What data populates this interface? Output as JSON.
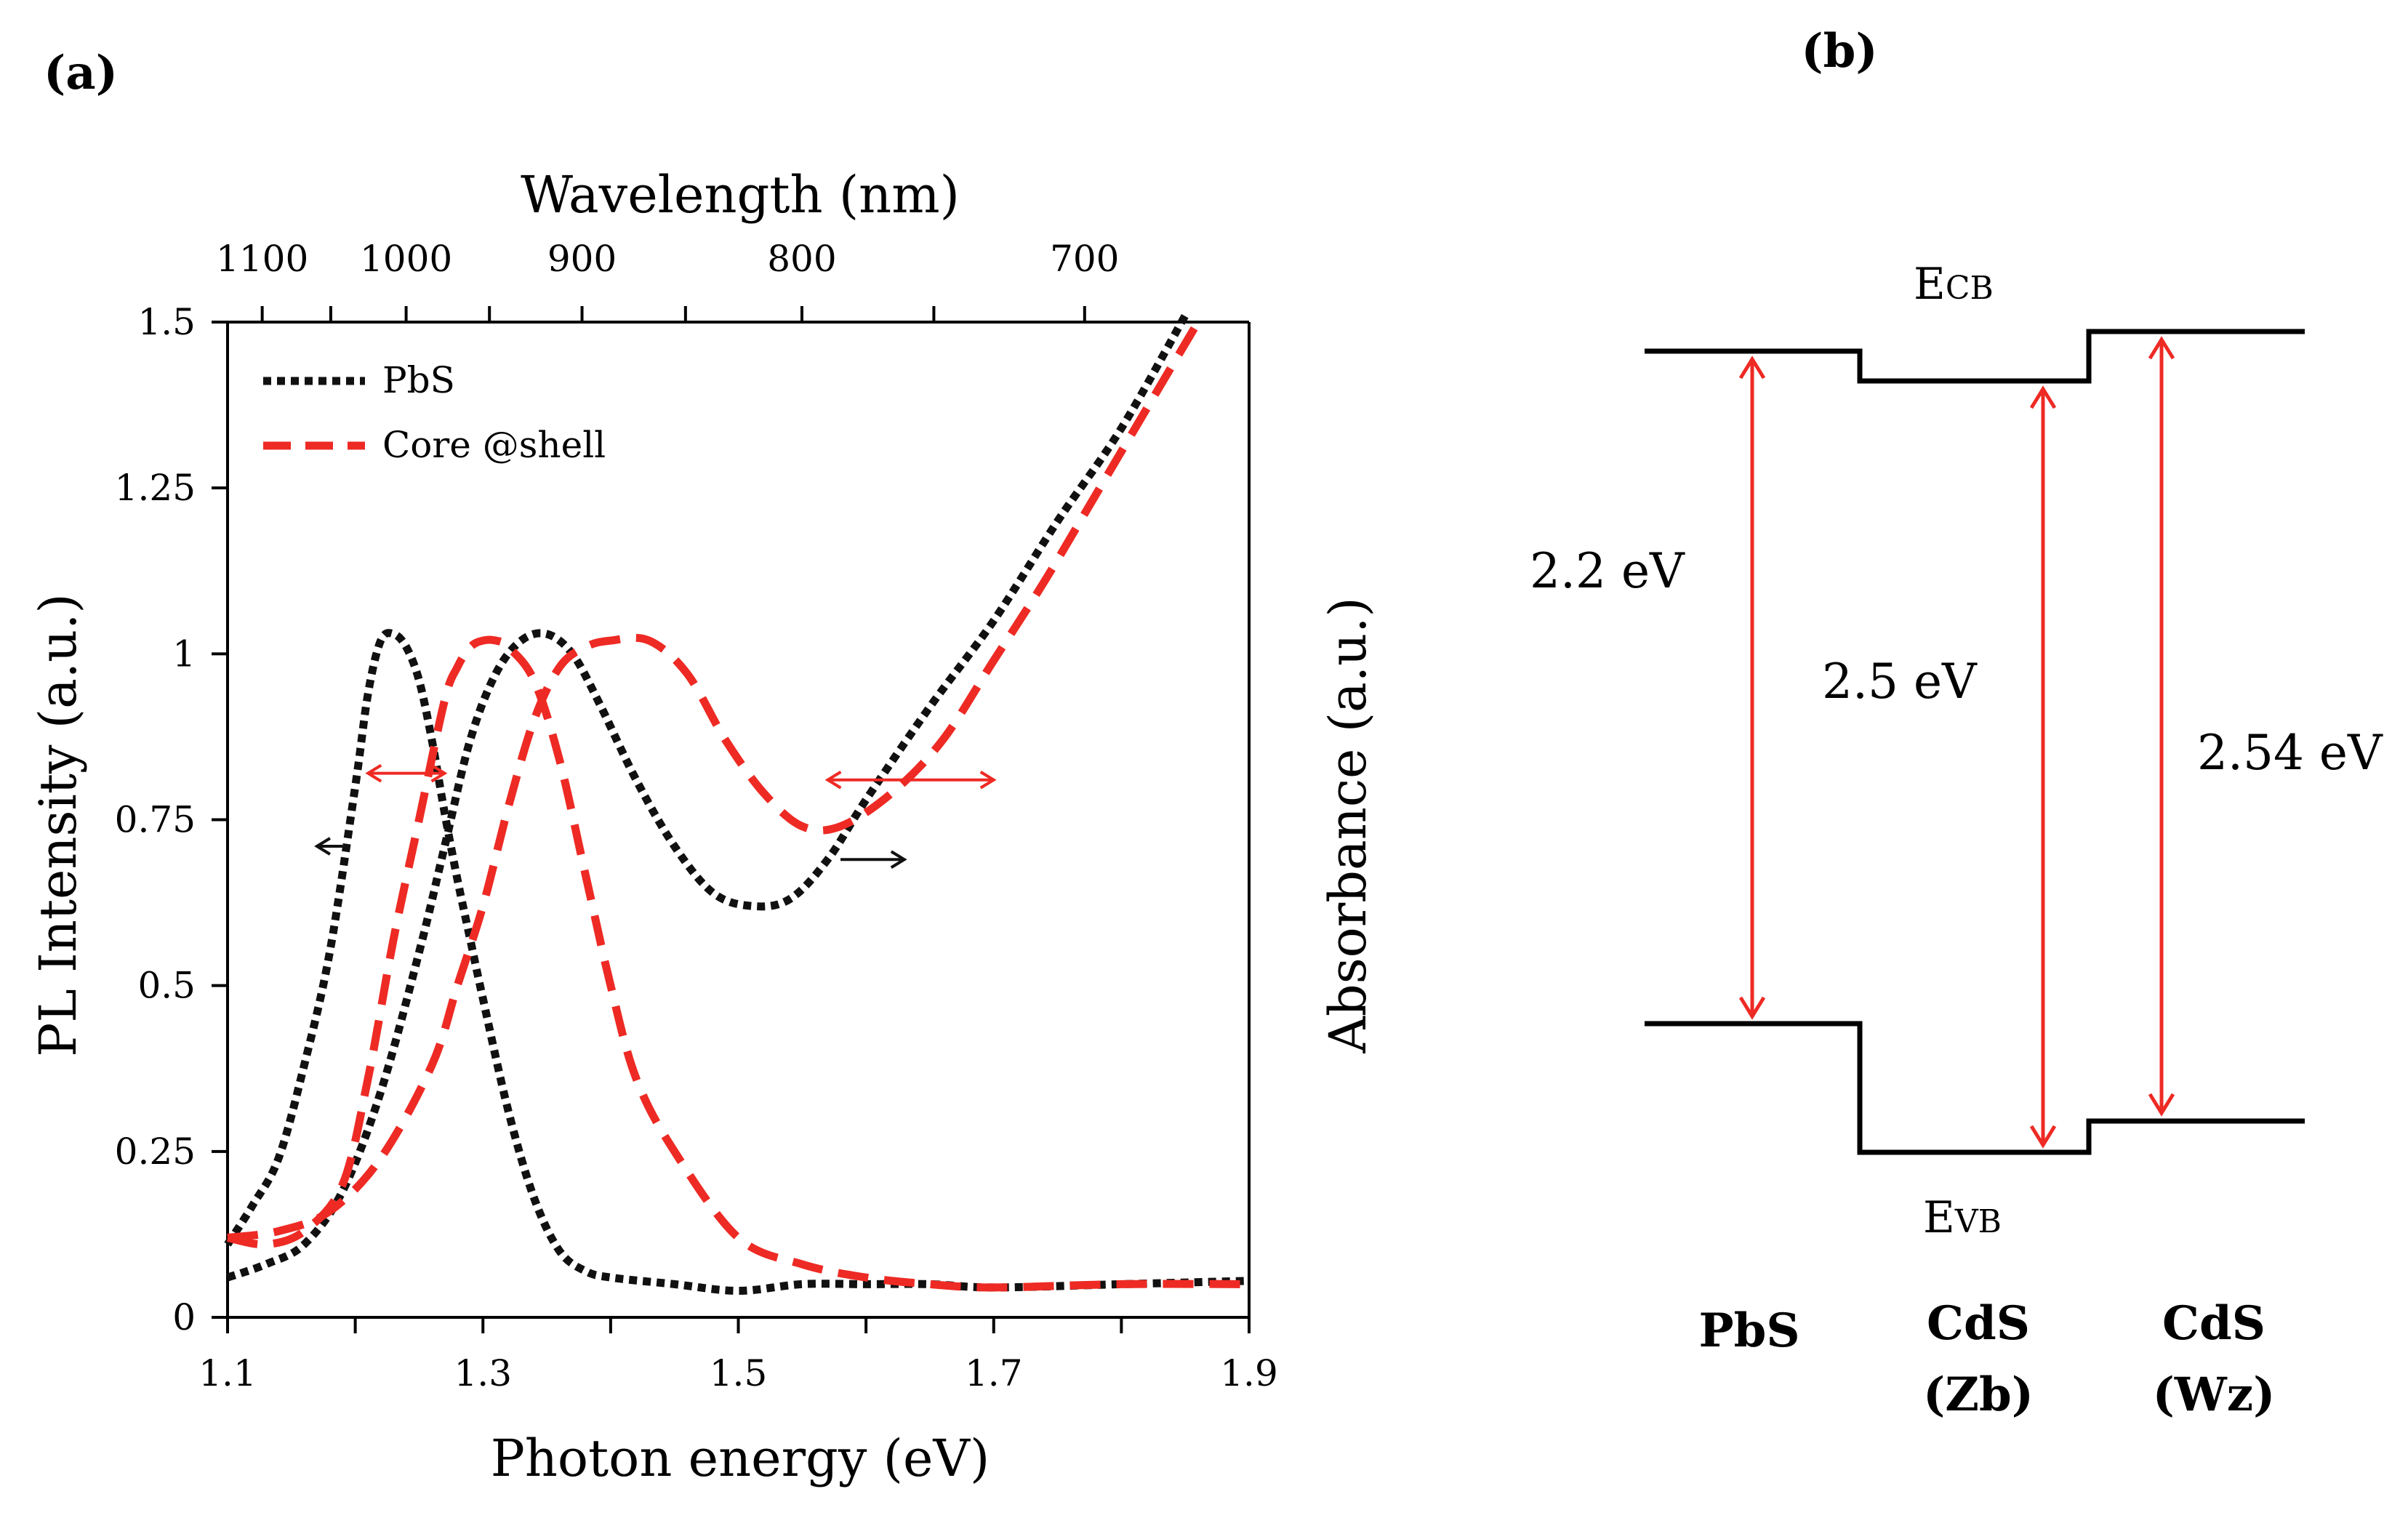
{
  "chart_data": [
    {
      "type": "line",
      "panel_label": "(a)",
      "xlabel": "Photon energy (eV)",
      "ylabel": "PL Intensity (a.u.)",
      "y2label": "Absorbance (a.u.)",
      "top_xlabel": "Wavelength (nm)",
      "xlim": [
        1.1,
        1.9
      ],
      "ylim": [
        0,
        1.5
      ],
      "x_ticks": [
        1.1,
        1.3,
        1.5,
        1.7,
        1.9
      ],
      "x_tick_labels": [
        "1.1",
        "1.3",
        "1.5",
        "1.7",
        "1.9"
      ],
      "y_ticks": [
        0,
        0.25,
        0.5,
        0.75,
        1,
        1.25,
        1.5
      ],
      "y_tick_labels": [
        "0",
        "0.25",
        "0.5",
        "0.75",
        "1",
        "1.25",
        "1.5"
      ],
      "top_ticks_nm": [
        1100,
        1000,
        900,
        800,
        700
      ],
      "top_tick_labels": [
        "1100",
        "1000",
        "900",
        "800",
        "700"
      ],
      "legend": {
        "position": "top-left",
        "entries": [
          "PbS",
          "Core @shell"
        ]
      },
      "colors": {
        "pbs": "#111111",
        "coreshell": "#ee2a24",
        "axis": "#000000"
      },
      "series": [
        {
          "name": "PbS",
          "kind": "PL",
          "style": "dotted",
          "x": [
            1.1,
            1.12,
            1.14,
            1.16,
            1.18,
            1.2,
            1.21,
            1.22,
            1.23,
            1.24,
            1.25,
            1.26,
            1.27,
            1.28,
            1.29,
            1.3,
            1.32,
            1.34,
            1.36,
            1.38,
            1.4,
            1.45,
            1.5,
            1.55,
            1.6,
            1.65,
            1.7,
            1.8,
            1.9
          ],
          "values": [
            0.11,
            0.17,
            0.24,
            0.38,
            0.55,
            0.8,
            0.94,
            1.02,
            1.03,
            1.01,
            0.96,
            0.87,
            0.76,
            0.66,
            0.57,
            0.48,
            0.31,
            0.18,
            0.1,
            0.07,
            0.06,
            0.05,
            0.04,
            0.05,
            0.05,
            0.05,
            0.045,
            0.05,
            0.055
          ]
        },
        {
          "name": "PbS",
          "kind": "Absorbance",
          "style": "dotted",
          "x": [
            1.1,
            1.13,
            1.16,
            1.19,
            1.22,
            1.25,
            1.27,
            1.29,
            1.31,
            1.33,
            1.35,
            1.37,
            1.39,
            1.42,
            1.45,
            1.48,
            1.51,
            1.54,
            1.57,
            1.6,
            1.65,
            1.7,
            1.75,
            1.8,
            1.85
          ],
          "values": [
            0.06,
            0.08,
            0.11,
            0.19,
            0.34,
            0.55,
            0.71,
            0.87,
            0.97,
            1.02,
            1.03,
            1.0,
            0.93,
            0.81,
            0.71,
            0.64,
            0.62,
            0.63,
            0.69,
            0.78,
            0.92,
            1.05,
            1.2,
            1.34,
            1.51
          ]
        },
        {
          "name": "Core @shell",
          "kind": "PL",
          "style": "dashed",
          "x": [
            1.1,
            1.13,
            1.16,
            1.19,
            1.21,
            1.23,
            1.25,
            1.27,
            1.28,
            1.29,
            1.3,
            1.31,
            1.32,
            1.34,
            1.36,
            1.38,
            1.4,
            1.42,
            1.45,
            1.5,
            1.55,
            1.6,
            1.65,
            1.7,
            1.8,
            1.9
          ],
          "values": [
            0.12,
            0.11,
            0.13,
            0.2,
            0.36,
            0.57,
            0.75,
            0.93,
            0.98,
            1.01,
            1.02,
            1.02,
            1.01,
            0.96,
            0.84,
            0.67,
            0.5,
            0.36,
            0.25,
            0.12,
            0.08,
            0.06,
            0.05,
            0.045,
            0.05,
            0.05
          ]
        },
        {
          "name": "Core @shell",
          "kind": "Absorbance",
          "style": "dashed",
          "x": [
            1.1,
            1.14,
            1.18,
            1.22,
            1.26,
            1.28,
            1.3,
            1.32,
            1.34,
            1.36,
            1.38,
            1.4,
            1.43,
            1.46,
            1.49,
            1.52,
            1.55,
            1.58,
            1.62,
            1.66,
            1.7,
            1.74,
            1.78,
            1.82,
            1.86
          ],
          "values": [
            0.12,
            0.13,
            0.16,
            0.24,
            0.38,
            0.5,
            0.62,
            0.77,
            0.9,
            0.98,
            1.01,
            1.02,
            1.02,
            0.97,
            0.87,
            0.79,
            0.74,
            0.74,
            0.79,
            0.87,
            0.99,
            1.11,
            1.24,
            1.37,
            1.5
          ]
        }
      ],
      "annotations": [
        {
          "type": "arrow",
          "direction": "left",
          "series": "PbS PL",
          "color": "#111111",
          "x_from": 1.19,
          "x_to": 1.17,
          "y": 0.71
        },
        {
          "type": "arrow",
          "direction": "right",
          "series": "PbS Absorbance",
          "color": "#111111",
          "x_from": 1.58,
          "x_to": 1.63,
          "y": 0.69
        },
        {
          "type": "double-arrow",
          "series": "Core @shell",
          "color": "#ee2a24",
          "x_from": 1.21,
          "x_to": 1.27,
          "y": 0.82
        },
        {
          "type": "double-arrow",
          "series": "Core @shell",
          "color": "#ee2a24",
          "x_from": 1.57,
          "x_to": 1.7,
          "y": 0.81
        }
      ]
    },
    {
      "type": "band-diagram",
      "panel_label": "(b)",
      "ecb_label": {
        "main": "E",
        "sub": "CB"
      },
      "evb_label": {
        "main": "E",
        "sub": "VB"
      },
      "materials": [
        {
          "name": "PbS",
          "sub": "",
          "gap_label": "2.2 eV",
          "gap_ev": 2.2
        },
        {
          "name": "CdS",
          "sub": "(Zb)",
          "gap_label": "2.5 eV",
          "gap_ev": 2.5
        },
        {
          "name": "CdS",
          "sub": "(Wz)",
          "gap_label": "2.54 eV",
          "gap_ev": 2.54
        }
      ],
      "colors": {
        "levels": "#000000",
        "gap_arrows": "#ee2a24"
      }
    }
  ]
}
